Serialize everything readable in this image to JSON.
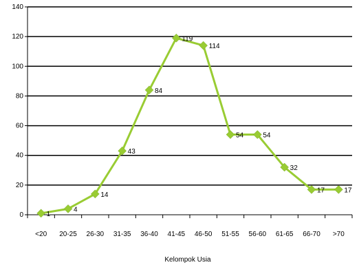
{
  "chart_data": {
    "type": "line",
    "title": "",
    "xlabel": "Kelompok Usia",
    "ylabel": "",
    "ylim": [
      0,
      140
    ],
    "yticks": [
      0,
      20,
      40,
      60,
      80,
      100,
      120,
      140
    ],
    "grid": "horizontal",
    "legend": "none",
    "categories": [
      "<20",
      "20-25",
      "26-30",
      "31-35",
      "36-40",
      "41-45",
      "46-50",
      "51-55",
      "56-60",
      "61-65",
      "66-70",
      ">70"
    ],
    "series": [
      {
        "values": [
          1,
          4,
          14,
          43,
          84,
          119,
          114,
          54,
          54,
          32,
          17,
          17
        ],
        "color": "#99cc33",
        "marker": "diamond"
      }
    ]
  }
}
